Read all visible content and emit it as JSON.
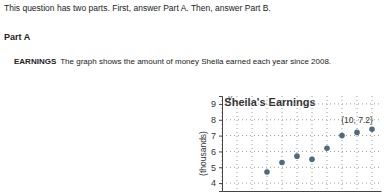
{
  "header": {
    "intro": "This question has two parts. First, answer Part A. Then, answer Part B.",
    "part": "Part A",
    "lead": "EARNINGS",
    "text": "The graph shows the amount of money Sheila earned each year since 2008."
  },
  "chart_data": {
    "type": "scatter",
    "title": "Sheila's Earnings",
    "y_label": "(thousands)",
    "axis_letter_y": "y",
    "x": [
      4,
      5,
      6,
      7,
      8,
      9,
      10,
      11
    ],
    "values": [
      4.7,
      5.3,
      5.7,
      5.5,
      6.2,
      7.0,
      7.2,
      7.4
    ],
    "color": "#4f6a80",
    "marker": "circle",
    "xlim": [
      1,
      11.6
    ],
    "xticks": [
      1,
      2,
      3,
      4,
      5,
      6,
      7,
      8,
      9,
      10,
      11
    ],
    "ylim": [
      3.5,
      9.5
    ],
    "yticks": [
      4,
      5,
      6,
      7,
      8,
      9
    ],
    "grid": true,
    "tick_labels": "y",
    "annotations": [
      {
        "text": "(10, 7.2)",
        "x": 10,
        "y": 7.2
      }
    ]
  }
}
